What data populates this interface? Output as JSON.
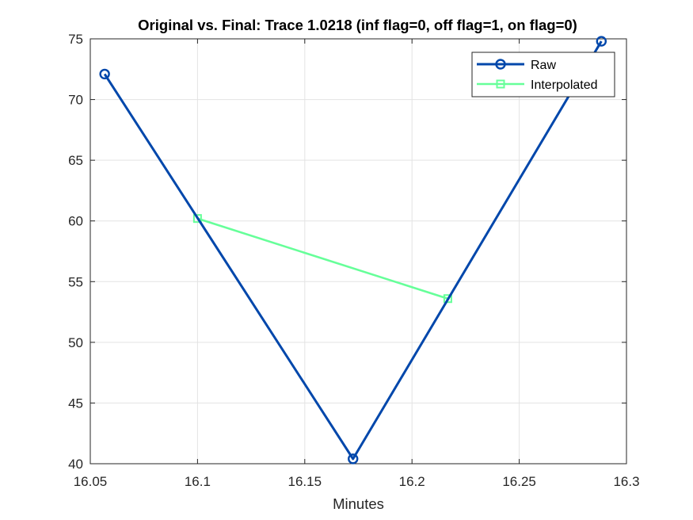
{
  "chart_data": {
    "type": "line",
    "title": "Original vs. Final: Trace 1.0218 (inf flag=0, off flag=1, on flag=0)",
    "xlabel": "Minutes",
    "ylabel": "",
    "xlim": [
      16.05,
      16.3
    ],
    "ylim": [
      40,
      75
    ],
    "xticks": [
      16.05,
      16.1,
      16.15,
      16.2,
      16.25,
      16.3
    ],
    "xtick_labels": [
      "16.05",
      "16.1",
      "16.15",
      "16.2",
      "16.25",
      "16.3"
    ],
    "yticks": [
      40,
      45,
      50,
      55,
      60,
      65,
      70,
      75
    ],
    "ytick_labels": [
      "40",
      "45",
      "50",
      "55",
      "60",
      "65",
      "70",
      "75"
    ],
    "grid": true,
    "legend_position": "top-right",
    "series": [
      {
        "name": "Raw",
        "color": "#0047ab",
        "marker": "circle",
        "x": [
          16.0567,
          16.1725,
          16.2883
        ],
        "y": [
          72.1,
          40.4,
          74.8
        ]
      },
      {
        "name": "Interpolated",
        "color": "#66ff99",
        "marker": "square",
        "x": [
          16.1,
          16.2167
        ],
        "y": [
          60.2,
          53.6
        ]
      }
    ]
  }
}
